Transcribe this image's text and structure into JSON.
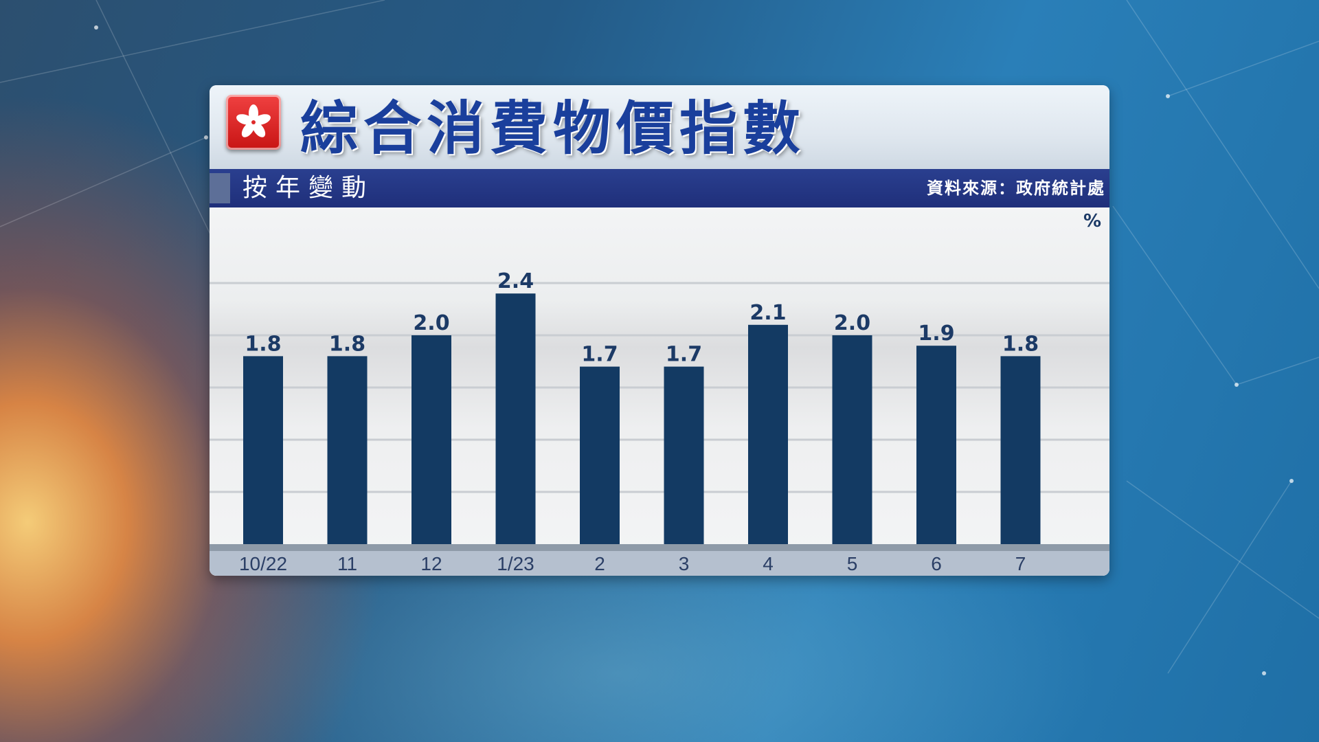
{
  "header": {
    "title": "綜合消費物價指數",
    "subtitle": "按年變動",
    "source": "資料來源：政府統計處"
  },
  "colors": {
    "bar": "#133a63",
    "title": "#1a3f9c",
    "subtitle_bar": "#22338a",
    "flag_red": "#de2a2a"
  },
  "icons": {
    "logo": "hong-kong-flag-icon"
  },
  "chart_data": {
    "type": "bar",
    "title": "綜合消費物價指數",
    "subtitle": "按年變動",
    "unit": "%",
    "categories": [
      "10/22",
      "11",
      "12",
      "1/23",
      "2",
      "3",
      "4",
      "5",
      "6",
      "7"
    ],
    "values": [
      1.8,
      1.8,
      2.0,
      2.4,
      1.7,
      1.7,
      2.1,
      2.0,
      1.9,
      1.8
    ],
    "data_labels": [
      "1.8",
      "1.8",
      "2.0",
      "2.4",
      "1.7",
      "1.7",
      "2.1",
      "2.0",
      "1.9",
      "1.8"
    ],
    "ylim": [
      0,
      2.5
    ],
    "grid": true,
    "legend": "none"
  }
}
